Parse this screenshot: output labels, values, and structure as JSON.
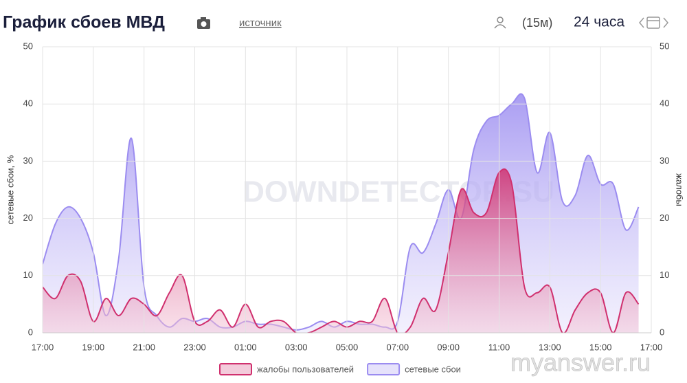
{
  "chart_data": {
    "type": "area",
    "title": "График сбоев МВД",
    "source_link": "источник",
    "interval": "(15м)",
    "period": "24 часа",
    "watermarks": [
      "DOWNDETECTOR.SU",
      "myanswer.ru"
    ],
    "ylabel": "сетевые сбои, %",
    "y2label": "жалобы",
    "x": [
      "17:00",
      "17:30",
      "18:00",
      "18:30",
      "19:00",
      "19:30",
      "20:00",
      "20:30",
      "21:00",
      "21:30",
      "22:00",
      "22:30",
      "23:00",
      "23:30",
      "00:00",
      "00:30",
      "01:00",
      "01:30",
      "02:00",
      "02:30",
      "03:00",
      "03:30",
      "04:00",
      "04:30",
      "05:00",
      "05:30",
      "06:00",
      "06:30",
      "07:00",
      "07:30",
      "08:00",
      "08:30",
      "09:00",
      "09:30",
      "10:00",
      "10:30",
      "11:00",
      "11:30",
      "12:00",
      "12:30",
      "13:00",
      "13:30",
      "14:00",
      "14:30",
      "15:00",
      "15:30",
      "16:00",
      "16:30"
    ],
    "xlim": [
      "17:00",
      "17:00"
    ],
    "xticks": [
      "17:00",
      "19:00",
      "21:00",
      "23:00",
      "01:00",
      "03:00",
      "05:00",
      "07:00",
      "09:00",
      "11:00",
      "13:00",
      "15:00",
      "17:00"
    ],
    "ylim": [
      0,
      50
    ],
    "yticks": [
      0,
      10,
      20,
      30,
      40,
      50
    ],
    "y2lim": [
      0,
      50
    ],
    "y2ticks": [
      0,
      10,
      20,
      30,
      40,
      50
    ],
    "grid": true,
    "legend": "bottom",
    "series": [
      {
        "name": "жалобы пользователей",
        "color": "#d0306e",
        "axis": "y2",
        "values": [
          8,
          6,
          10,
          9,
          2,
          6,
          3,
          6,
          5,
          3,
          7,
          10,
          2,
          2,
          4,
          1,
          5,
          1,
          2,
          2,
          0,
          0,
          1,
          2,
          1,
          2,
          2,
          6,
          0,
          1,
          6,
          4,
          14,
          25,
          21,
          21,
          28,
          26,
          8,
          7,
          8,
          0,
          4,
          7,
          7,
          0,
          7,
          5
        ]
      },
      {
        "name": "сетевые сбои",
        "color": "#9b8cf0",
        "values": [
          12,
          19,
          22,
          20,
          14,
          3,
          13,
          34,
          8,
          3,
          1,
          2.5,
          2,
          2.5,
          1,
          1,
          2,
          1.5,
          1.5,
          1,
          0.5,
          1,
          2,
          1,
          2,
          1.5,
          1.5,
          1,
          2,
          15,
          14,
          19,
          25,
          20,
          32,
          37,
          38,
          40,
          41,
          28,
          35,
          23,
          24,
          31,
          26,
          26,
          18,
          22
        ]
      }
    ]
  }
}
